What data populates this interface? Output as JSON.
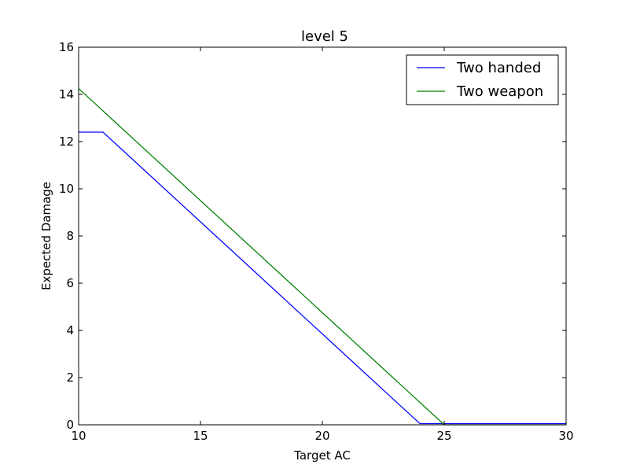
{
  "chart_data": {
    "type": "line",
    "title": "level 5",
    "xlabel": "Target AC",
    "ylabel": "Expected Damage",
    "xlim": [
      10,
      30
    ],
    "ylim": [
      0,
      16
    ],
    "xticks": [
      10,
      15,
      20,
      25,
      30
    ],
    "yticks": [
      0,
      2,
      4,
      6,
      8,
      10,
      12,
      14,
      16
    ],
    "grid": false,
    "legend_position": "top-right",
    "series": [
      {
        "name": "Two handed",
        "color": "#0000ff",
        "x": [
          10,
          11,
          12,
          13,
          14,
          15,
          16,
          17,
          18,
          19,
          20,
          21,
          22,
          23,
          24,
          25,
          26,
          27,
          28,
          29,
          30
        ],
        "y": [
          12.4,
          12.4,
          11.45,
          10.5,
          9.55,
          8.6,
          7.65,
          6.7,
          5.75,
          4.8,
          3.85,
          2.9,
          1.95,
          1.0,
          0.05,
          0.05,
          0.05,
          0.05,
          0.05,
          0.05,
          0.05
        ]
      },
      {
        "name": "Two weapon",
        "color": "#008000",
        "x": [
          10,
          11,
          12,
          13,
          14,
          15,
          16,
          17,
          18,
          19,
          20,
          21,
          22,
          23,
          24,
          25,
          26,
          27,
          28,
          29,
          30
        ],
        "y": [
          14.25,
          13.3,
          12.35,
          11.4,
          10.45,
          9.5,
          8.55,
          7.6,
          6.65,
          5.7,
          4.75,
          3.8,
          2.85,
          1.9,
          0.95,
          0.0,
          0.0,
          0.0,
          0.0,
          0.0,
          0.0
        ]
      }
    ]
  }
}
